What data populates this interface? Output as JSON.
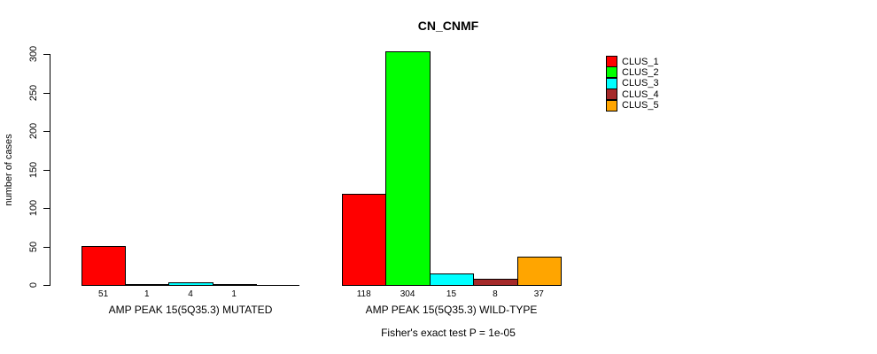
{
  "title": "CN_CNMF",
  "chart_data": {
    "type": "bar",
    "title": "CN_CNMF",
    "ylabel": "number of cases",
    "xlabel": "",
    "ylim": [
      0,
      300
    ],
    "yticks": [
      0,
      50,
      100,
      150,
      200,
      250,
      300
    ],
    "grid": false,
    "clusters": [
      "CLUS_1",
      "CLUS_2",
      "CLUS_3",
      "CLUS_4",
      "CLUS_5"
    ],
    "colors": [
      "#ff0000",
      "#00ff00",
      "#00ffff",
      "#a52a2a",
      "#ffa500"
    ],
    "groups": [
      {
        "label": "AMP PEAK 15(5Q35.3) MUTATED",
        "values": [
          51,
          1,
          4,
          1,
          0
        ],
        "bar_labels": [
          "51",
          "1",
          "4",
          "1",
          ""
        ]
      },
      {
        "label": "AMP PEAK 15(5Q35.3) WILD-TYPE",
        "values": [
          118,
          304,
          15,
          8,
          37
        ],
        "bar_labels": [
          "118",
          "304",
          "15",
          "8",
          "37"
        ]
      }
    ],
    "footer": "Fisher's exact test P = 1e-05",
    "legend": {
      "position": "top-right",
      "entries": [
        "CLUS_1",
        "CLUS_2",
        "CLUS_3",
        "CLUS_4",
        "CLUS_5"
      ]
    }
  }
}
